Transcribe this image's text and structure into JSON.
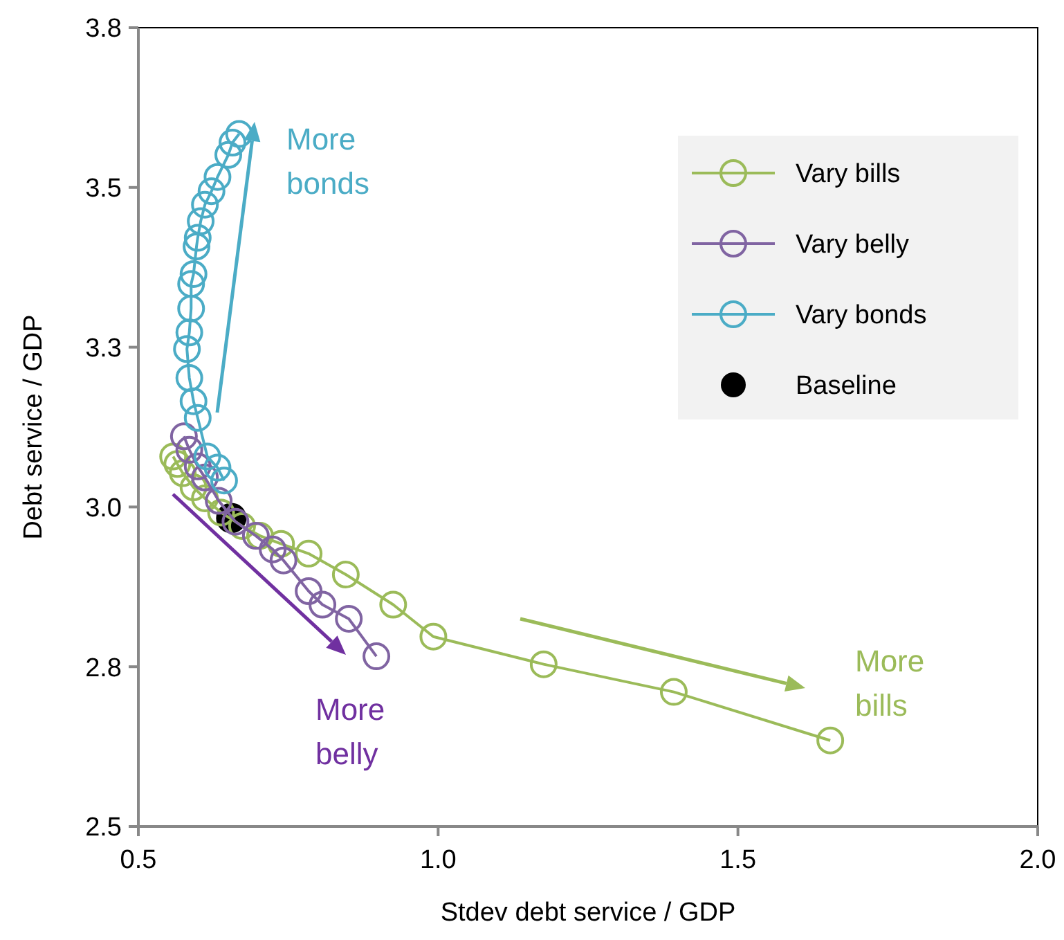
{
  "chart_data": {
    "type": "line",
    "xlabel": "Stdev debt service / GDP",
    "ylabel": "Debt service / GDP",
    "xlim": [
      0.5,
      2.0
    ],
    "xticks": [
      {
        "value": 0.5,
        "label": "0.5"
      },
      {
        "value": 1,
        "label": "1.0"
      },
      {
        "value": 1.5,
        "label": "1.5"
      },
      {
        "value": 2,
        "label": "2.0"
      }
    ],
    "ylim": [
      2.5,
      3.8
    ],
    "yticks": [
      {
        "value": 2.5,
        "label": "2.5"
      },
      {
        "value": 2.76,
        "label": "2.8"
      },
      {
        "value": 3.02,
        "label": "3.0"
      },
      {
        "value": 3.28,
        "label": "3.3"
      },
      {
        "value": 3.54,
        "label": "3.5"
      },
      {
        "value": 3.8,
        "label": "3.8"
      }
    ],
    "grid": false,
    "legend": "top right",
    "marker": "circle",
    "line_style": "solid",
    "series": [
      {
        "name": "Vary bills",
        "color": "#9bbb59",
        "x": [
          1.654,
          1.393,
          1.176,
          0.992,
          0.925,
          0.846,
          0.784,
          0.738,
          0.703,
          0.673,
          0.638,
          0.611,
          0.592,
          0.574,
          0.565,
          0.558
        ],
        "values": [
          2.64,
          2.719,
          2.764,
          2.809,
          2.861,
          2.91,
          2.944,
          2.96,
          2.973,
          2.989,
          3.011,
          3.034,
          3.052,
          3.075,
          3.09,
          3.102
        ]
      },
      {
        "name": "Vary belly",
        "color": "#8064a2",
        "x": [
          0.897,
          0.851,
          0.807,
          0.784,
          0.742,
          0.724,
          0.696,
          0.662,
          0.634,
          0.611,
          0.599,
          0.585,
          0.576
        ],
        "values": [
          2.777,
          2.838,
          2.861,
          2.883,
          2.933,
          2.951,
          2.973,
          2.996,
          3.03,
          3.068,
          3.086,
          3.113,
          3.135
        ]
      },
      {
        "name": "Vary bonds",
        "color": "#4bacc6",
        "x": [
          0.668,
          0.657,
          0.65,
          0.632,
          0.622,
          0.611,
          0.604,
          0.599,
          0.597,
          0.592,
          0.588,
          0.588,
          0.585,
          0.581,
          0.585,
          0.592,
          0.599,
          0.615,
          0.632,
          0.643
        ],
        "values": [
          3.627,
          3.613,
          3.593,
          3.557,
          3.534,
          3.512,
          3.485,
          3.458,
          3.444,
          3.399,
          3.383,
          3.343,
          3.304,
          3.277,
          3.23,
          3.192,
          3.165,
          3.102,
          3.084,
          3.063
        ]
      },
      {
        "name": "Baseline",
        "type": "scatter",
        "color": "#000000",
        "x": [
          0.655
        ],
        "values": [
          3.002
        ]
      }
    ],
    "annotations": [
      "More bonds",
      "More belly",
      "More bills"
    ]
  }
}
